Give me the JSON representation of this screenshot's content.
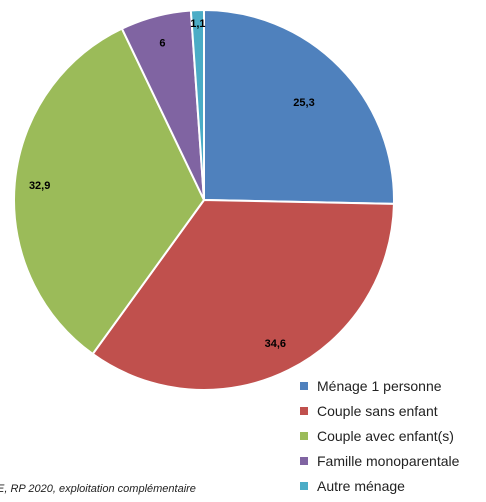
{
  "chart_data": {
    "type": "pie",
    "categories": [
      "Ménage 1 personne",
      "Couple sans enfant",
      "Couple avec enfant(s)",
      "Famille monoparentale",
      "Autre ménage"
    ],
    "values": [
      25.3,
      34.6,
      32.9,
      6,
      1.1
    ],
    "data_labels": [
      "25,3",
      "34,6",
      "32,9",
      "6",
      "1,1"
    ],
    "colors": [
      "#4f81bd",
      "#c0504d",
      "#9bbb59",
      "#8064a2",
      "#4bacc6"
    ],
    "start_angle": "12 o'clock",
    "direction": "clockwise",
    "legend_position": "bottom-right"
  },
  "source_note": "E, RP 2020, exploitation complémentaire"
}
